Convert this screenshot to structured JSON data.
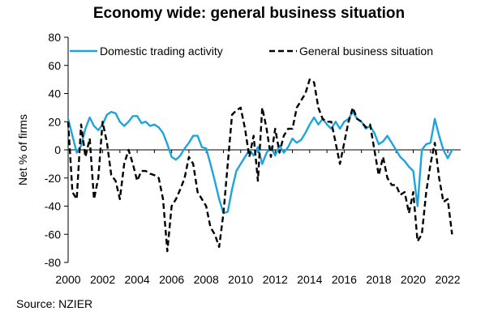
{
  "chart_data": {
    "type": "line",
    "title": "Economy wide: general business situation",
    "ylabel": "Net % of firms",
    "xlabel": "",
    "ylim": [
      -80,
      80
    ],
    "xlim": [
      2000,
      2022.75
    ],
    "y_ticks": [
      -80,
      -60,
      -40,
      -20,
      0,
      20,
      40,
      60,
      80
    ],
    "x_ticks": [
      "2000",
      "2002",
      "2004",
      "2006",
      "2008",
      "2010",
      "2012",
      "2014",
      "2016",
      "2018",
      "2020",
      "2022"
    ],
    "legend_position": "top",
    "grid": false,
    "series": [
      {
        "name": "Domestic trading activity",
        "color": "#1fa3dc",
        "style": "solid",
        "points": [
          [
            2000.0,
            22
          ],
          [
            2000.25,
            10
          ],
          [
            2000.5,
            -2
          ],
          [
            2000.75,
            3
          ],
          [
            2001.0,
            15
          ],
          [
            2001.25,
            23
          ],
          [
            2001.5,
            17
          ],
          [
            2001.75,
            14
          ],
          [
            2002.0,
            18
          ],
          [
            2002.25,
            25
          ],
          [
            2002.5,
            27
          ],
          [
            2002.75,
            26
          ],
          [
            2003.0,
            20
          ],
          [
            2003.25,
            17
          ],
          [
            2003.5,
            20
          ],
          [
            2003.75,
            24
          ],
          [
            2004.0,
            24
          ],
          [
            2004.25,
            19
          ],
          [
            2004.5,
            20
          ],
          [
            2004.75,
            17
          ],
          [
            2005.0,
            18
          ],
          [
            2005.25,
            16
          ],
          [
            2005.5,
            12
          ],
          [
            2005.75,
            4
          ],
          [
            2006.0,
            -5
          ],
          [
            2006.25,
            -7
          ],
          [
            2006.5,
            -4
          ],
          [
            2006.75,
            1
          ],
          [
            2007.0,
            5
          ],
          [
            2007.25,
            10
          ],
          [
            2007.5,
            10
          ],
          [
            2007.75,
            2
          ],
          [
            2008.0,
            1
          ],
          [
            2008.25,
            -10
          ],
          [
            2008.5,
            -22
          ],
          [
            2008.75,
            -35
          ],
          [
            2009.0,
            -45
          ],
          [
            2009.25,
            -44
          ],
          [
            2009.5,
            -28
          ],
          [
            2009.75,
            -15
          ],
          [
            2010.0,
            -10
          ],
          [
            2010.25,
            -5
          ],
          [
            2010.5,
            0
          ],
          [
            2010.75,
            -4
          ],
          [
            2011.0,
            2
          ],
          [
            2011.25,
            -10
          ],
          [
            2011.5,
            -2
          ],
          [
            2011.75,
            2
          ],
          [
            2012.0,
            -4
          ],
          [
            2012.25,
            3
          ],
          [
            2012.5,
            -2
          ],
          [
            2012.75,
            2
          ],
          [
            2013.0,
            8
          ],
          [
            2013.25,
            5
          ],
          [
            2013.5,
            7
          ],
          [
            2013.75,
            12
          ],
          [
            2014.0,
            18
          ],
          [
            2014.25,
            23
          ],
          [
            2014.5,
            18
          ],
          [
            2014.75,
            22
          ],
          [
            2015.0,
            18
          ],
          [
            2015.25,
            15
          ],
          [
            2015.5,
            20
          ],
          [
            2015.75,
            15
          ],
          [
            2016.0,
            20
          ],
          [
            2016.25,
            22
          ],
          [
            2016.5,
            27
          ],
          [
            2016.75,
            22
          ],
          [
            2017.0,
            20
          ],
          [
            2017.25,
            15
          ],
          [
            2017.5,
            17
          ],
          [
            2017.75,
            12
          ],
          [
            2018.0,
            4
          ],
          [
            2018.25,
            6
          ],
          [
            2018.5,
            10
          ],
          [
            2018.75,
            5
          ],
          [
            2019.0,
            0
          ],
          [
            2019.25,
            -5
          ],
          [
            2019.5,
            -8
          ],
          [
            2019.75,
            -12
          ],
          [
            2020.0,
            -15
          ],
          [
            2020.25,
            -40
          ],
          [
            2020.5,
            0
          ],
          [
            2020.75,
            4
          ],
          [
            2021.0,
            5
          ],
          [
            2021.25,
            22
          ],
          [
            2021.5,
            10
          ],
          [
            2021.75,
            0
          ],
          [
            2022.0,
            -6
          ],
          [
            2022.25,
            0
          ]
        ]
      },
      {
        "name": "General business situation",
        "color": "#000000",
        "style": "dashed",
        "points": [
          [
            2000.0,
            20
          ],
          [
            2000.25,
            -30
          ],
          [
            2000.5,
            -35
          ],
          [
            2000.75,
            18
          ],
          [
            2001.0,
            -5
          ],
          [
            2001.25,
            8
          ],
          [
            2001.5,
            -35
          ],
          [
            2001.75,
            -20
          ],
          [
            2002.0,
            20
          ],
          [
            2002.25,
            5
          ],
          [
            2002.5,
            -18
          ],
          [
            2002.75,
            -22
          ],
          [
            2003.0,
            -35
          ],
          [
            2003.25,
            -10
          ],
          [
            2003.5,
            0
          ],
          [
            2003.75,
            -10
          ],
          [
            2004.0,
            -22
          ],
          [
            2004.25,
            -15
          ],
          [
            2004.5,
            -15
          ],
          [
            2004.75,
            -17
          ],
          [
            2005.0,
            -18
          ],
          [
            2005.25,
            -20
          ],
          [
            2005.5,
            -35
          ],
          [
            2005.75,
            -72
          ],
          [
            2006.0,
            -40
          ],
          [
            2006.25,
            -35
          ],
          [
            2006.5,
            -28
          ],
          [
            2006.75,
            -20
          ],
          [
            2007.0,
            -5
          ],
          [
            2007.25,
            -10
          ],
          [
            2007.5,
            -30
          ],
          [
            2007.75,
            -35
          ],
          [
            2008.0,
            -40
          ],
          [
            2008.25,
            -55
          ],
          [
            2008.5,
            -60
          ],
          [
            2008.75,
            -69
          ],
          [
            2009.0,
            -45
          ],
          [
            2009.25,
            -10
          ],
          [
            2009.5,
            25
          ],
          [
            2009.75,
            28
          ],
          [
            2010.0,
            30
          ],
          [
            2010.25,
            15
          ],
          [
            2010.5,
            -5
          ],
          [
            2010.75,
            10
          ],
          [
            2011.0,
            -22
          ],
          [
            2011.25,
            30
          ],
          [
            2011.5,
            15
          ],
          [
            2011.75,
            -5
          ],
          [
            2012.0,
            15
          ],
          [
            2012.25,
            -2
          ],
          [
            2012.5,
            10
          ],
          [
            2012.75,
            15
          ],
          [
            2013.0,
            15
          ],
          [
            2013.25,
            30
          ],
          [
            2013.5,
            35
          ],
          [
            2013.75,
            40
          ],
          [
            2014.0,
            50
          ],
          [
            2014.25,
            48
          ],
          [
            2014.5,
            30
          ],
          [
            2014.75,
            22
          ],
          [
            2015.0,
            20
          ],
          [
            2015.25,
            20
          ],
          [
            2015.5,
            5
          ],
          [
            2015.75,
            -10
          ],
          [
            2016.0,
            5
          ],
          [
            2016.25,
            20
          ],
          [
            2016.5,
            30
          ],
          [
            2016.75,
            22
          ],
          [
            2017.0,
            20
          ],
          [
            2017.25,
            16
          ],
          [
            2017.5,
            18
          ],
          [
            2017.75,
            0
          ],
          [
            2018.0,
            -18
          ],
          [
            2018.25,
            -5
          ],
          [
            2018.5,
            -20
          ],
          [
            2018.75,
            -25
          ],
          [
            2019.0,
            -25
          ],
          [
            2019.25,
            -32
          ],
          [
            2019.5,
            -30
          ],
          [
            2019.75,
            -45
          ],
          [
            2020.0,
            -30
          ],
          [
            2020.25,
            -65
          ],
          [
            2020.5,
            -60
          ],
          [
            2020.75,
            -30
          ],
          [
            2021.0,
            -10
          ],
          [
            2021.25,
            5
          ],
          [
            2021.5,
            -20
          ],
          [
            2021.75,
            -37
          ],
          [
            2022.0,
            -35
          ],
          [
            2022.25,
            -60
          ]
        ]
      }
    ]
  },
  "source": "Source: NZIER"
}
